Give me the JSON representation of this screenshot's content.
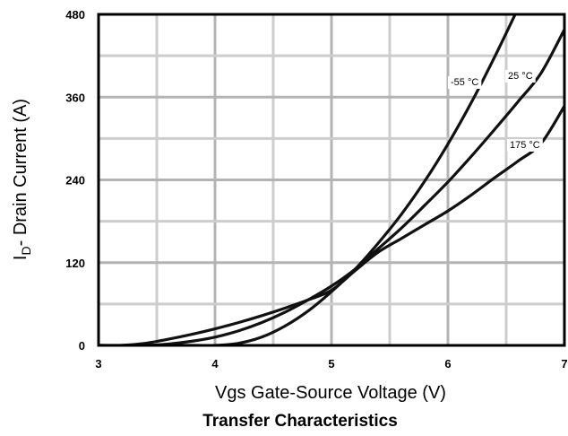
{
  "chart_data": {
    "type": "line",
    "title": "Transfer Characteristics",
    "xlabel": "Vgs Gate-Source Voltage (V)",
    "ylabel_main": "I",
    "ylabel_sub": "D",
    "ylabel_rest": "- Drain Current (A)",
    "xlim": [
      3,
      7
    ],
    "ylim": [
      0,
      480
    ],
    "x_ticks": [
      3,
      4,
      5,
      6,
      7
    ],
    "y_ticks": [
      0,
      120,
      240,
      360,
      480
    ],
    "x_minor_step": 0.5,
    "y_minor_step": 60,
    "grid": true,
    "series": [
      {
        "name": "-55 °C",
        "x": [
          3.0,
          3.8,
          4.0,
          4.2,
          4.4,
          4.6,
          4.8,
          5.0,
          5.2,
          5.4,
          5.6,
          5.8,
          6.0,
          6.2,
          6.4,
          6.6
        ],
        "y": [
          0,
          0,
          0,
          3,
          12,
          28,
          50,
          78,
          110,
          148,
          190,
          238,
          292,
          352,
          418,
          488
        ]
      },
      {
        "name": "25 °C",
        "x": [
          3.0,
          3.4,
          3.6,
          3.8,
          4.0,
          4.2,
          4.4,
          4.6,
          4.8,
          5.0,
          5.2,
          5.4,
          5.6,
          5.8,
          6.0,
          6.2,
          6.4,
          6.6,
          6.8,
          7.0
        ],
        "y": [
          0,
          0,
          2,
          6,
          12,
          21,
          33,
          48,
          66,
          86,
          110,
          140,
          170,
          203,
          237,
          274,
          313,
          353,
          395,
          458
        ]
      },
      {
        "name": "175 °C",
        "x": [
          3.0,
          3.2,
          3.4,
          3.6,
          3.8,
          4.0,
          4.2,
          4.4,
          4.6,
          4.8,
          5.0,
          5.2,
          5.4,
          5.6,
          5.8,
          6.0,
          6.2,
          6.4,
          6.6,
          6.8,
          7.0
        ],
        "y": [
          0,
          0,
          3,
          9,
          16,
          24,
          33,
          43,
          54,
          66,
          80,
          108,
          135,
          155,
          175,
          195,
          218,
          243,
          267,
          293,
          347
        ]
      }
    ],
    "curve_label_side": "right-inside"
  },
  "colors": {
    "major_grid": "#b4b4b4",
    "minor_grid": "#cdcdcd",
    "axis": "#000000",
    "curve": "#111111"
  }
}
